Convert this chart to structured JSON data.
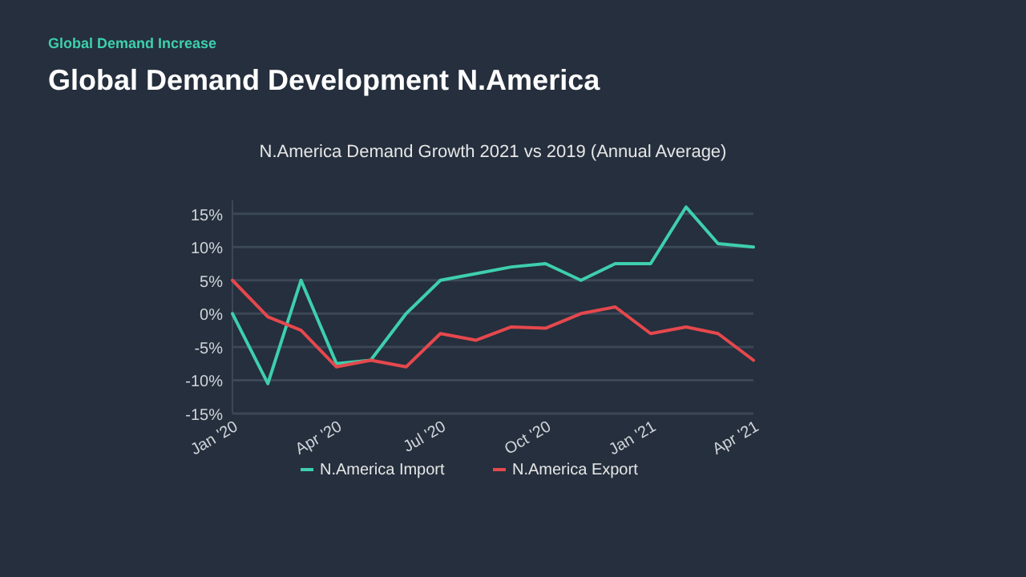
{
  "chart_data": {
    "type": "line",
    "title": "Global Demand Development N.America",
    "subtitle": "N.America Demand Growth 2021 vs 2019 (Annual Average)",
    "annotations": [
      "Global Demand Increase"
    ],
    "x": [
      "2020-01",
      "2020-02",
      "2020-03",
      "2020-04",
      "2020-05",
      "2020-06",
      "2020-07",
      "2020-08",
      "2020-09",
      "2020-10",
      "2020-11",
      "2020-12",
      "2021-01",
      "2021-02",
      "2021-03",
      "2021-04"
    ],
    "series": [
      {
        "name": "N.America Import",
        "color": "#3ecfae",
        "values": [
          0,
          -10.5,
          5,
          -7.5,
          -7,
          0,
          5,
          6,
          7,
          7.5,
          5,
          7.5,
          7.5,
          16,
          10.5,
          10
        ]
      },
      {
        "name": "N.America Export",
        "color": "#e5484d",
        "values": [
          5,
          -0.5,
          -2.5,
          -8,
          -7,
          -8,
          -3,
          -4,
          -2,
          -2.2,
          0,
          1,
          -3,
          -2,
          -3,
          -7
        ]
      }
    ],
    "xlim": [
      "2020-01",
      "2021-04"
    ],
    "xticks": [
      {
        "value": "2020-01",
        "label": "Jan '20"
      },
      {
        "value": "2020-04",
        "label": "Apr '20"
      },
      {
        "value": "2020-07",
        "label": "Jul '20"
      },
      {
        "value": "2020-10",
        "label": "Oct '20"
      },
      {
        "value": "2021-01",
        "label": "Jan '21"
      },
      {
        "value": "2021-04",
        "label": "Apr '21"
      }
    ],
    "ylim": [
      -15,
      17
    ],
    "yticks": [
      {
        "value": -15,
        "label": "-15%"
      },
      {
        "value": -10,
        "label": "-10%"
      },
      {
        "value": -5,
        "label": "-5%"
      },
      {
        "value": 0,
        "label": "0%"
      },
      {
        "value": 5,
        "label": "5%"
      },
      {
        "value": 10,
        "label": "10%"
      },
      {
        "value": 15,
        "label": "15%"
      }
    ],
    "grid": "y",
    "legend": "bottom",
    "marker": "none",
    "line_style": "solid"
  }
}
